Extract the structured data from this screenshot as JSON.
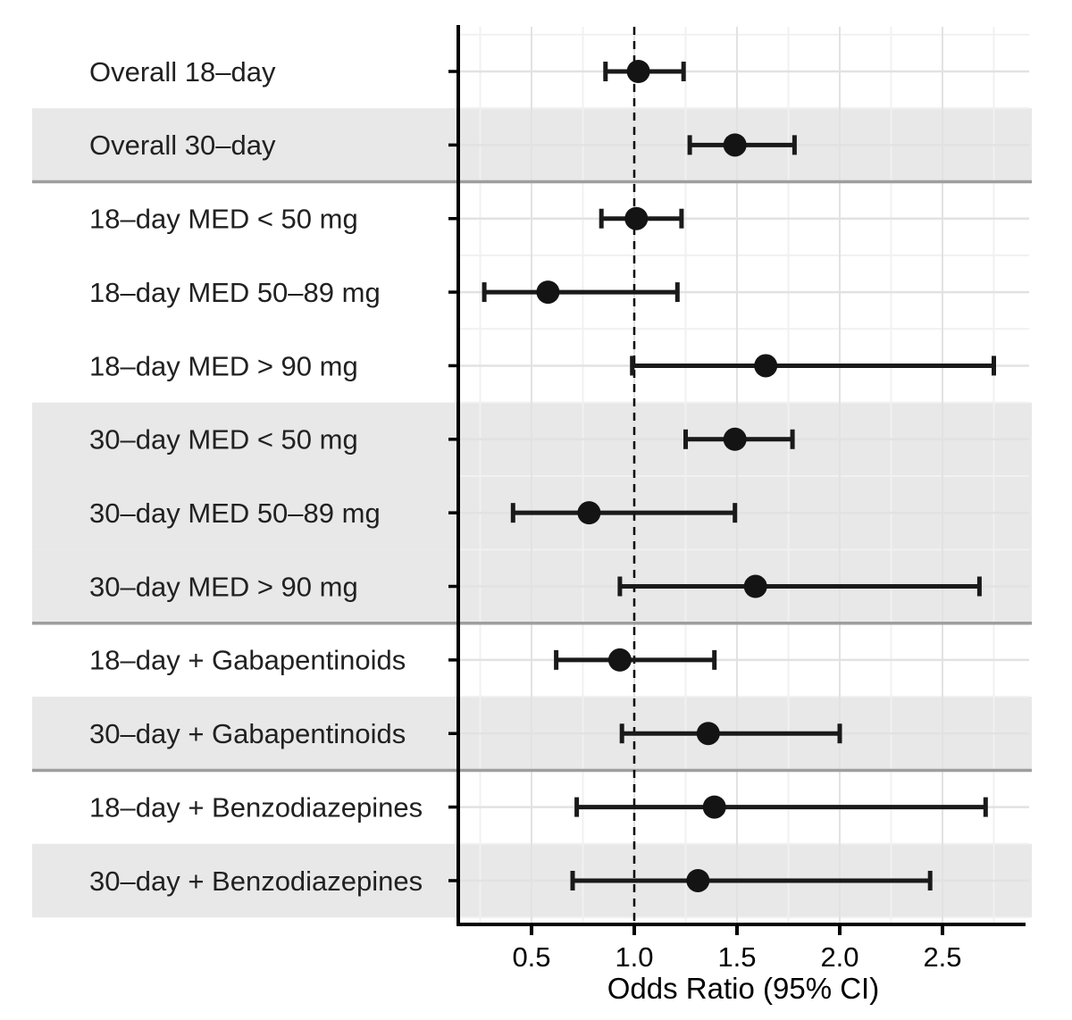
{
  "chart_data": {
    "type": "forest",
    "title": "",
    "xlabel": "Odds Ratio (95% CI)",
    "x_ticks": [
      0.5,
      1.0,
      1.5,
      2.0,
      2.5
    ],
    "x_tick_labels": [
      "0.5",
      "1.0",
      "1.5",
      "2.0",
      "2.5"
    ],
    "x_minor_ticks": [
      0.25,
      0.5,
      0.75,
      1.25,
      1.5,
      1.75,
      2.0,
      2.25,
      2.5,
      2.75
    ],
    "xlim": [
      0.14,
      2.92
    ],
    "reference_line": 1.0,
    "legend": null,
    "grid": true,
    "rows": [
      {
        "label": "Overall 18–day",
        "or": 1.02,
        "ci_low": 0.86,
        "ci_high": 1.24,
        "shaded": false,
        "group": "overall"
      },
      {
        "label": "Overall 30–day",
        "or": 1.49,
        "ci_low": 1.27,
        "ci_high": 1.78,
        "shaded": true,
        "group": "overall"
      },
      {
        "label": "18–day MED < 50 mg",
        "or": 1.01,
        "ci_low": 0.84,
        "ci_high": 1.23,
        "shaded": false,
        "group": "med-dose"
      },
      {
        "label": "18–day MED 50–89 mg",
        "or": 0.58,
        "ci_low": 0.27,
        "ci_high": 1.21,
        "shaded": false,
        "group": "med-dose"
      },
      {
        "label": "18–day MED > 90 mg",
        "or": 1.64,
        "ci_low": 0.99,
        "ci_high": 2.75,
        "shaded": false,
        "group": "med-dose"
      },
      {
        "label": "30–day MED < 50 mg",
        "or": 1.49,
        "ci_low": 1.25,
        "ci_high": 1.77,
        "shaded": true,
        "group": "med-dose"
      },
      {
        "label": "30–day MED 50–89 mg",
        "or": 0.78,
        "ci_low": 0.41,
        "ci_high": 1.49,
        "shaded": true,
        "group": "med-dose"
      },
      {
        "label": "30–day MED > 90 mg",
        "or": 1.59,
        "ci_low": 0.93,
        "ci_high": 2.68,
        "shaded": true,
        "group": "med-dose"
      },
      {
        "label": "18–day + Gabapentinoids",
        "or": 0.93,
        "ci_low": 0.62,
        "ci_high": 1.39,
        "shaded": false,
        "group": "gabapentinoids"
      },
      {
        "label": "30–day + Gabapentinoids",
        "or": 1.36,
        "ci_low": 0.94,
        "ci_high": 2.0,
        "shaded": true,
        "group": "gabapentinoids"
      },
      {
        "label": "18–day + Benzodiazepines",
        "or": 1.39,
        "ci_low": 0.72,
        "ci_high": 2.71,
        "shaded": false,
        "group": "benzodiazepines"
      },
      {
        "label": "30–day + Benzodiazepines",
        "or": 1.31,
        "ci_low": 0.7,
        "ci_high": 2.44,
        "shaded": true,
        "group": "benzodiazepines"
      }
    ],
    "separators_after_row": [
      1,
      7,
      9
    ],
    "colors": {
      "point": "#141414",
      "whisker": "#1a1a1a",
      "band": "#e8e8e8",
      "separator": "#9e9e9e",
      "grid_major": "#e2e2e2",
      "grid_minor": "#f1f1f1",
      "axis": "#000000",
      "reference": "#000000",
      "y_label_text": "#212121",
      "x_label_text": "#000000"
    }
  }
}
